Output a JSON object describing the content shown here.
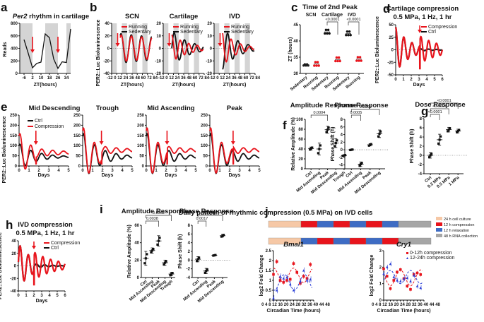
{
  "colors": {
    "red": "#e8141c",
    "black": "#111111",
    "blue": "#2b3fd6",
    "grey_band": "#d4d4d4",
    "culture": "#f6c8a6",
    "compression": "#e8141c",
    "relaxation": "#3e6cc4",
    "rna": "#a6a6a6"
  },
  "chart_data": [
    {
      "id": "a",
      "panel_label": "a",
      "type": "line",
      "title": "Per2 rhythm in cartilage",
      "title_italic_part": "Per2",
      "title_rest": " rhythm in cartilage",
      "xlabel": "ZT(hours)",
      "ylabel": "Reads",
      "xticks": [
        -6,
        2,
        10,
        18,
        26,
        34
      ],
      "yticks": [
        0,
        200,
        400,
        600,
        800
      ],
      "xlim": [
        -10,
        38
      ],
      "ylim": [
        0,
        800
      ],
      "dark_bands": [
        [
          -10,
          2
        ],
        [
          14,
          26
        ],
        [
          34,
          38
        ]
      ],
      "arrows_at": [
        2,
        26
      ],
      "series": [
        {
          "name": "Per2",
          "color": "black",
          "x": [
            -6,
            -2,
            2,
            6,
            10,
            14,
            18,
            22,
            26,
            30,
            34,
            38
          ],
          "y": [
            540,
            320,
            90,
            160,
            180,
            630,
            570,
            230,
            80,
            185,
            175,
            710
          ]
        }
      ]
    },
    {
      "id": "b",
      "panel_label": "b",
      "type": "line",
      "ylabel": "PER2::Luc Bioluminescence",
      "subplots": [
        {
          "title": "SCN",
          "xlabel": "ZT(hours)",
          "xticks": [
            -12,
            0,
            12,
            24,
            36,
            48,
            60,
            72,
            84
          ],
          "yticks": [
            -40,
            -20,
            0,
            20,
            40
          ],
          "ylim": [
            -40,
            40
          ],
          "amp": 22,
          "legend": [
            "Running",
            "Sedentary"
          ]
        },
        {
          "title": "Cartilage",
          "xlabel": "ZT(hours)",
          "xticks": [
            -12,
            0,
            12,
            24,
            36,
            48,
            60,
            72,
            84
          ],
          "yticks": [
            -20,
            -10,
            0,
            10,
            20
          ],
          "ylim": [
            -20,
            20
          ],
          "amp": 12,
          "legend": [
            "Running",
            "Sedentary"
          ]
        },
        {
          "title": "IVD",
          "xlabel": "ZT(hours)",
          "xticks": [
            -12,
            0,
            12,
            24,
            36,
            48,
            60,
            72,
            84
          ],
          "yticks": [
            -20,
            -10,
            0,
            10,
            20
          ],
          "ylim": [
            -20,
            20
          ],
          "amp": 12,
          "legend": [
            "Running",
            "Sedentary"
          ]
        }
      ]
    },
    {
      "id": "c",
      "panel_label": "c",
      "type": "scatter",
      "title": "Time of 2nd Peak",
      "ylabel": "ZT (hours)",
      "groups": [
        "SCN",
        "Cartilage",
        "IVD"
      ],
      "categories": [
        "Sedentary",
        "Running",
        "Sedentary",
        "Running",
        "Sedentary",
        "Running"
      ],
      "yticks": [
        30,
        35,
        40,
        45
      ],
      "ylim": [
        30,
        45
      ],
      "means": [
        32.6,
        32.9,
        42.8,
        34.3,
        42.3,
        34.4
      ],
      "point_colors": [
        "black",
        "red",
        "black",
        "red",
        "black",
        "red"
      ],
      "pvalues": [
        {
          "text": "<0.0001",
          "from": 2,
          "to": 3
        },
        {
          "text": "<0.0001",
          "from": 4,
          "to": 5
        }
      ]
    },
    {
      "id": "d",
      "panel_label": "d",
      "type": "line",
      "title": "Cartilage compression",
      "subtitle": "0.5 MPa, 1 Hz, 1 hr",
      "xlabel": "Days",
      "ylabel": "PER2::Luc Bioluminescence",
      "xticks": [
        0,
        1,
        2,
        3,
        4,
        5,
        6
      ],
      "yticks": [
        -50,
        -25,
        0,
        25,
        50
      ],
      "ylim": [
        -50,
        50
      ],
      "arrow_at": 3.1,
      "legend": [
        "Compression",
        "Ctrl"
      ]
    },
    {
      "id": "e",
      "panel_label": "e",
      "type": "line",
      "ylabel": "PER2::Luc Bioluminescence",
      "legend": [
        "Ctrl",
        "Compression"
      ],
      "subplots": [
        {
          "title": "Mid Descending",
          "xlabel": "Days",
          "arrow_at": 1.7,
          "xticks": [
            0,
            1,
            2,
            3,
            4,
            5
          ],
          "yticks": [
            0,
            50,
            100,
            150,
            200,
            250
          ]
        },
        {
          "title": "Trough",
          "xlabel": "Days",
          "arrow_at": 1.9,
          "xticks": [
            0,
            1,
            2,
            3,
            4,
            5
          ],
          "yticks": [
            0,
            50,
            100,
            150,
            200,
            250
          ]
        },
        {
          "title": "Mid Ascending",
          "xlabel": "Days",
          "arrow_at": 2.1,
          "xticks": [
            0,
            1,
            2,
            3,
            4,
            5
          ],
          "yticks": [
            0,
            50,
            100,
            150,
            200,
            250
          ]
        },
        {
          "title": "Peak",
          "xlabel": "Days",
          "arrow_at": 2.35,
          "xticks": [
            0,
            1,
            2,
            3,
            4,
            5
          ],
          "yticks": [
            0,
            50,
            100,
            150,
            200,
            250
          ]
        }
      ]
    },
    {
      "id": "f",
      "panel_label": "f",
      "type": "scatter",
      "subplots": [
        {
          "title": "Amplitude Response",
          "ylabel": "Relative Amplitude (%)",
          "categories": [
            "Ctrl",
            "Mid Ascending",
            "Peak",
            "Mid Descending",
            "Trough"
          ],
          "yticks": [
            0,
            20,
            40,
            60,
            80,
            100
          ],
          "ylim": [
            0,
            100
          ],
          "means": [
            41,
            40,
            79,
            52,
            27
          ],
          "sd": [
            3,
            12,
            7,
            9,
            1
          ],
          "pvalues": [
            {
              "text": "0.0004",
              "from": 0,
              "to": 2
            }
          ]
        },
        {
          "title": "Phase Response",
          "ylabel": "Phase Shift (h)",
          "categories": [
            "Ctrl",
            "Mid Ascending",
            "Peak",
            "Mid Descending"
          ],
          "yticks": [
            -4,
            -2,
            0,
            2,
            4,
            6,
            8
          ],
          "ylim": [
            -5,
            8
          ],
          "means": [
            0,
            -3.8,
            1.3,
            4.2
          ],
          "sd": [
            0.1,
            0.6,
            0.3,
            1
          ],
          "pvalues": [
            {
              "text": "0.0005",
              "from": 0,
              "to": 1
            },
            {
              "text": "0.0001",
              "from": 0,
              "to": 3
            }
          ]
        }
      ]
    },
    {
      "id": "g",
      "panel_label": "g",
      "type": "scatter",
      "title": "Dose Response",
      "ylabel": "Phase Shift (h)",
      "categories": [
        "Ctrl",
        "0.2 MPa",
        "0.5 MPa",
        "1 MPa"
      ],
      "yticks": [
        -4,
        -2,
        0,
        2,
        4,
        6,
        8
      ],
      "ylim": [
        -4,
        8
      ],
      "means": [
        0,
        3.4,
        5.6,
        5.3
      ],
      "sd": [
        0.6,
        1.2,
        0.5,
        0.4
      ],
      "pvalues": [
        {
          "text": "<0.0001",
          "from": 0,
          "to": 1
        },
        {
          "text": "<0.0001",
          "from": 0,
          "to": 2
        },
        {
          "text": "<0.0001",
          "from": 0,
          "to": 3
        }
      ]
    },
    {
      "id": "h",
      "panel_label": "h",
      "type": "line",
      "title": "IVD compression",
      "subtitle": "0.5 MPa, 1 Hz, 1 hr",
      "xlabel": "Days",
      "ylabel": "PER2::Luc Bioluminescence",
      "xticks": [
        0,
        1,
        2,
        3,
        4,
        5,
        6
      ],
      "yticks": [
        -40,
        -20,
        0,
        20,
        40
      ],
      "ylim": [
        -40,
        40
      ],
      "arrow_at": 2,
      "legend": [
        "Compression",
        "Ctrl"
      ]
    },
    {
      "id": "i",
      "panel_label": "i",
      "type": "scatter",
      "subplots": [
        {
          "title": "Amplitude Response",
          "ylabel": "Relative Amplitude (%)",
          "categories": [
            "Ctrl",
            "Mid Ascending",
            "Peak",
            "Mid Descending",
            "Trough"
          ],
          "yticks": [
            0,
            20,
            40,
            60
          ],
          "ylim": [
            0,
            60
          ],
          "means": [
            22,
            31,
            42,
            17,
            4
          ],
          "sd": [
            8,
            3,
            6,
            3,
            2
          ],
          "pvalues": [
            {
              "text": "0.0038",
              "from": 0,
              "to": 2
            },
            {
              "text": "0.0063",
              "from": 0,
              "to": 4
            }
          ]
        },
        {
          "title": "Phase Response",
          "ylabel": "Phase Shift (h)",
          "categories": [
            "Ctrl",
            "Mid Ascending",
            "Peak",
            "Mid Descending"
          ],
          "yticks": [
            -4,
            -2,
            0,
            2,
            4,
            6,
            8
          ],
          "ylim": [
            -4,
            8
          ],
          "means": [
            0.2,
            -2.5,
            1.1,
            5.6
          ],
          "sd": [
            0.6,
            0.6,
            0.1,
            0.3
          ],
          "pvalues": [
            {
              "text": "0.0017",
              "from": 0,
              "to": 1
            },
            {
              "text": "<0.0001",
              "from": 0,
              "to": 3
            }
          ]
        }
      ]
    },
    {
      "id": "j",
      "panel_label": "j",
      "type": "line",
      "title": "Daily pattern of rhythmic compression (0.5 MPa) on IVD cells",
      "schedule_rows": [
        [
          "culture",
          "compression",
          "relaxation",
          "compression",
          "relaxation",
          "compression",
          "relaxation",
          "rna"
        ],
        [
          "culture",
          "relaxation",
          "compression",
          "relaxation",
          "compression",
          "relaxation",
          "compression",
          "rna"
        ]
      ],
      "schedule_legend": [
        {
          "key": "culture",
          "label": "24 h cell culture"
        },
        {
          "key": "compression",
          "label": "12 h compression"
        },
        {
          "key": "relaxation",
          "label": "12 h relaxation"
        },
        {
          "key": "rna",
          "label": "48 h RNA collection"
        }
      ],
      "legend": [
        "0-12h compression",
        "12-24h compression"
      ],
      "subplots": [
        {
          "title": "Bmal1",
          "xlabel": "Circadian Time (hours)",
          "ylabel": "log2 Fold Change",
          "xticks": [
            0,
            4,
            8,
            12,
            16,
            20,
            24,
            28,
            32,
            36,
            40,
            44,
            48
          ],
          "yticks": [
            0.0,
            0.5,
            1.0,
            1.5,
            2.0,
            2.5
          ],
          "ylim": [
            0,
            2.5
          ],
          "x": [
            0,
            4,
            8,
            12,
            16,
            20,
            24,
            28,
            32,
            36,
            40,
            44
          ],
          "red": [
            1.3,
            1.95,
            1.0,
            0.9,
            1.0,
            1.05,
            1.85,
            1.4,
            0.85,
            1.2,
            1.1,
            1.8
          ],
          "blue": [
            0.1,
            0.5,
            1.2,
            1.1,
            1.15,
            0.8,
            0.5,
            null,
            0.95,
            1.5,
            1.0,
            1.05
          ],
          "red_fit": {
            "mesor": 1.25,
            "amp": 0.37,
            "peak": 24
          },
          "blue_fit": {
            "mesor": 0.9,
            "amp": 0.4,
            "peak": 13
          }
        },
        {
          "title": "Cry1",
          "xlabel": "Circadian Time (hours)",
          "ylabel": "log2 Fold Change",
          "xticks": [
            0,
            4,
            8,
            12,
            16,
            20,
            24,
            28,
            32,
            36,
            40,
            44,
            48
          ],
          "yticks": [
            0,
            1,
            2,
            3
          ],
          "ylim": [
            0,
            3
          ],
          "x": [
            0,
            4,
            8,
            12,
            16,
            20,
            24,
            28,
            32,
            36,
            40,
            44
          ],
          "red": [
            1.9,
            1.45,
            0.7,
            1.2,
            1.7,
            1.85,
            1.3,
            0.85,
            0.65,
            1.55,
            1.65,
            1.55
          ],
          "blue": [
            1.6,
            2.0,
            2.2,
            1.4,
            1.2,
            1.15,
            1.3,
            1.35,
            1.15,
            1.5,
            0.85,
            0.75
          ],
          "red_fit": {
            "mesor": 1.35,
            "amp": 0.48,
            "peak": 20
          },
          "blue_fit": {
            "mesor": 1.4,
            "amp": 0.4,
            "peak": 8
          }
        }
      ]
    }
  ]
}
